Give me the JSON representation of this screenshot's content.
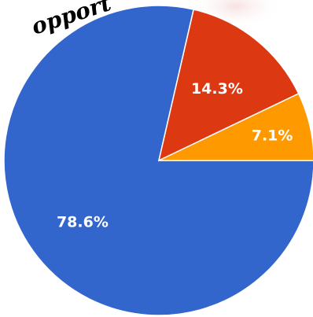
{
  "watermark_text": "opport",
  "chart_data": {
    "type": "pie",
    "values": [
      78.6,
      14.3,
      7.1
    ],
    "labels": [
      "78.6%",
      "14.3%",
      "7.1%"
    ],
    "colors": [
      "#3366cc",
      "#dc3912",
      "#ff9900"
    ],
    "title": "",
    "legend": "none"
  }
}
